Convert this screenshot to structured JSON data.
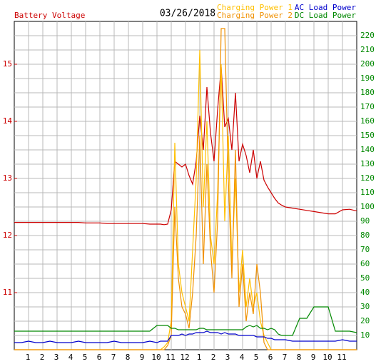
{
  "chart_data": {
    "type": "line",
    "date": "03/26/2018",
    "x": [
      0,
      0.5,
      1,
      1.5,
      2,
      2.5,
      3,
      3.5,
      4,
      4.5,
      5,
      5.5,
      6,
      6.5,
      7,
      7.5,
      8,
      8.5,
      9,
      9.5,
      10,
      10.25,
      10.5,
      10.75,
      11,
      11.25,
      11.5,
      11.75,
      12,
      12.25,
      12.5,
      12.75,
      13,
      13.25,
      13.5,
      13.75,
      14,
      14.25,
      14.5,
      14.75,
      15,
      15.25,
      15.5,
      15.75,
      16,
      16.25,
      16.5,
      16.75,
      17,
      17.25,
      17.5,
      17.75,
      18,
      18.25,
      18.5,
      18.75,
      19,
      19.5,
      20,
      20.5,
      21,
      21.5,
      22,
      22.5,
      23,
      23.5,
      24
    ],
    "xlim": [
      0,
      24
    ],
    "xticks": [
      1,
      2,
      3,
      4,
      5,
      6,
      7,
      8,
      9,
      10,
      11,
      12,
      {
        "value": 13,
        "label": "1"
      },
      {
        "value": 14,
        "label": "2"
      },
      {
        "value": 15,
        "label": "3"
      },
      {
        "value": 16,
        "label": "4"
      },
      {
        "value": 17,
        "label": "5"
      },
      {
        "value": 18,
        "label": "6"
      },
      {
        "value": 19,
        "label": "7"
      },
      {
        "value": 20,
        "label": "8"
      },
      {
        "value": 21,
        "label": "9"
      },
      {
        "value": 22,
        "label": "10"
      },
      {
        "value": 23,
        "label": "11"
      }
    ],
    "ylim": [
      10,
      15.75
    ],
    "yticks": [
      11,
      12,
      13,
      14,
      15
    ],
    "y2lim": [
      0,
      230
    ],
    "y2ticks": [
      10,
      20,
      30,
      40,
      50,
      60,
      70,
      80,
      90,
      100,
      110,
      120,
      130,
      140,
      150,
      160,
      170,
      180,
      190,
      200,
      210,
      220
    ],
    "grid": true,
    "series": [
      {
        "name": "Battery Voltage",
        "color": "#cc0000",
        "axis": "y",
        "values": [
          12.23,
          12.23,
          12.23,
          12.23,
          12.23,
          12.23,
          12.23,
          12.23,
          12.23,
          12.23,
          12.22,
          12.22,
          12.22,
          12.21,
          12.21,
          12.21,
          12.21,
          12.21,
          12.21,
          12.2,
          12.2,
          12.2,
          12.19,
          12.2,
          12.45,
          13.3,
          13.25,
          13.2,
          13.25,
          13.05,
          12.9,
          13.3,
          14.1,
          13.5,
          14.6,
          13.8,
          13.3,
          14.2,
          14.95,
          13.9,
          14.05,
          13.5,
          14.5,
          13.3,
          13.6,
          13.4,
          13.1,
          13.5,
          13.0,
          13.3,
          12.97,
          12.85,
          12.75,
          12.65,
          12.57,
          12.53,
          12.5,
          12.48,
          12.46,
          12.44,
          12.42,
          12.4,
          12.38,
          12.38,
          12.45,
          12.46,
          12.43
        ]
      },
      {
        "name": "Charging Power 1",
        "color": "#ffc000",
        "axis": "y2",
        "values": [
          0,
          0,
          0,
          0,
          0,
          0,
          0,
          0,
          0,
          0,
          0,
          0,
          0,
          0,
          0,
          0,
          0,
          0,
          0,
          0,
          0,
          0,
          2,
          5,
          20,
          145,
          60,
          40,
          30,
          20,
          70,
          120,
          210,
          100,
          160,
          80,
          60,
          110,
          200,
          90,
          150,
          60,
          120,
          40,
          70,
          30,
          50,
          30,
          40,
          20,
          10,
          5,
          0,
          0,
          0,
          0,
          0,
          0,
          0,
          0,
          0,
          0,
          0,
          0,
          0,
          0,
          0
        ]
      },
      {
        "name": "Charging Power 2",
        "color": "#f09000",
        "axis": "y2",
        "values": [
          0,
          0,
          0,
          0,
          0,
          0,
          0,
          0,
          0,
          0,
          0,
          0,
          0,
          0,
          0,
          0,
          0,
          0,
          0,
          0,
          0,
          0,
          0,
          3,
          10,
          100,
          50,
          30,
          25,
          15,
          40,
          80,
          150,
          60,
          130,
          70,
          40,
          90,
          225,
          225,
          120,
          50,
          140,
          30,
          60,
          20,
          40,
          25,
          60,
          40,
          5,
          0,
          0,
          0,
          0,
          0,
          0,
          0,
          0,
          0,
          0,
          0,
          0,
          0,
          0,
          0,
          0
        ]
      },
      {
        "name": "AC Load Power",
        "color": "#0000cc",
        "axis": "y2",
        "values": [
          5,
          5,
          6,
          5,
          5,
          6,
          5,
          5,
          5,
          6,
          5,
          5,
          5,
          5,
          6,
          5,
          5,
          5,
          5,
          6,
          5,
          6,
          6,
          6,
          10,
          10,
          10,
          11,
          10,
          11,
          11,
          12,
          12,
          12,
          13,
          12,
          12,
          12,
          11,
          12,
          11,
          11,
          11,
          10,
          10,
          10,
          10,
          10,
          9,
          9,
          9,
          8,
          8,
          7,
          7,
          7,
          7,
          6,
          6,
          6,
          6,
          6,
          6,
          6,
          7,
          6,
          6
        ]
      },
      {
        "name": "DC Load Power",
        "color": "#008800",
        "axis": "y2",
        "values": [
          13,
          13,
          13,
          13,
          13,
          13,
          13,
          13,
          13,
          13,
          13,
          13,
          13,
          13,
          13,
          13,
          13,
          13,
          13,
          13,
          17,
          17,
          17,
          17,
          15,
          15,
          14,
          14,
          14,
          14,
          14,
          14,
          15,
          15,
          14,
          14,
          14,
          14,
          14,
          14,
          14,
          14,
          14,
          14,
          14,
          16,
          17,
          16,
          17,
          15,
          15,
          14,
          15,
          14,
          11,
          10,
          10,
          10,
          22,
          22,
          30,
          30,
          30,
          13,
          13,
          13,
          12
        ]
      }
    ]
  }
}
